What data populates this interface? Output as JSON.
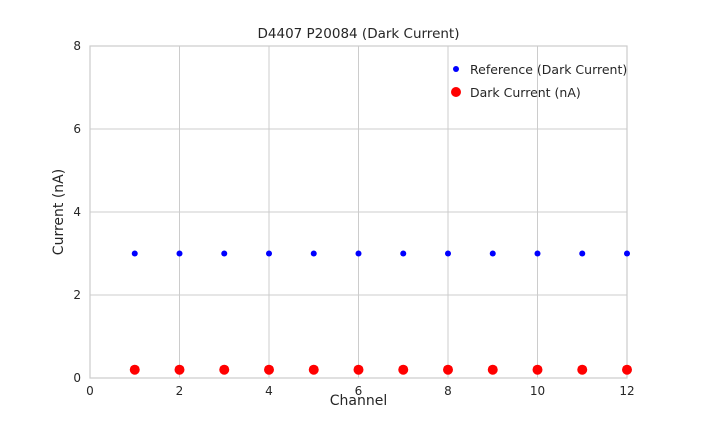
{
  "chart_data": {
    "type": "scatter",
    "title": "D4407 P20084 (Dark Current)",
    "xlabel": "Channel",
    "ylabel": "Current (nA)",
    "xlim": [
      0,
      12
    ],
    "ylim": [
      0,
      8
    ],
    "x_ticks": [
      0,
      2,
      4,
      6,
      8,
      10,
      12
    ],
    "y_ticks": [
      0,
      2,
      4,
      6,
      8
    ],
    "grid": true,
    "grid_color": "#cccccc",
    "text_color": "#262626",
    "legend_position": "upper right",
    "x": [
      1,
      2,
      3,
      4,
      5,
      6,
      7,
      8,
      9,
      10,
      11,
      12
    ],
    "series": [
      {
        "name": "Reference (Dark Current)",
        "color": "#0000ff",
        "marker_radius": 3,
        "legend_marker_px": 6,
        "values": [
          3,
          3,
          3,
          3,
          3,
          3,
          3,
          3,
          3,
          3,
          3,
          3
        ]
      },
      {
        "name": "Dark Current (nA)",
        "color": "#ff0000",
        "marker_radius": 5,
        "legend_marker_px": 10,
        "values": [
          0.2,
          0.2,
          0.2,
          0.2,
          0.2,
          0.2,
          0.2,
          0.2,
          0.2,
          0.2,
          0.2,
          0.2
        ]
      }
    ]
  }
}
